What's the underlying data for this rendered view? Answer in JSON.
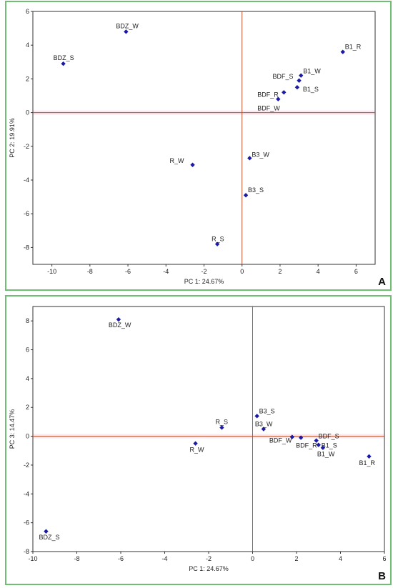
{
  "chart_data": [
    {
      "type": "scatter",
      "panel_letter": "A",
      "xlabel": "PC 1: 24.67%",
      "ylabel": "PC 2: 19.91%",
      "xlim": [
        -11,
        7
      ],
      "ylim": [
        -9,
        6
      ],
      "xticks": [
        -10,
        -8,
        -6,
        -4,
        -2,
        0,
        2,
        4,
        6
      ],
      "yticks": [
        -8,
        -6,
        -4,
        -2,
        0,
        2,
        4,
        6
      ],
      "points": [
        {
          "label": "BDZ_W",
          "x": -6.1,
          "y": 4.8
        },
        {
          "label": "BDZ_S",
          "x": -9.4,
          "y": 2.9
        },
        {
          "label": "B1_R",
          "x": 5.3,
          "y": 3.6
        },
        {
          "label": "B1_W",
          "x": 3.1,
          "y": 2.2
        },
        {
          "label": "BDF_S",
          "x": 3.0,
          "y": 1.9
        },
        {
          "label": "B1_S",
          "x": 2.9,
          "y": 1.5
        },
        {
          "label": "BDF_R",
          "x": 2.2,
          "y": 1.2
        },
        {
          "label": "BDF_W",
          "x": 1.9,
          "y": 0.8
        },
        {
          "label": "B3_W",
          "x": 0.4,
          "y": -2.7
        },
        {
          "label": "R_W",
          "x": -2.6,
          "y": -3.1
        },
        {
          "label": "B3_S",
          "x": 0.2,
          "y": -4.9
        },
        {
          "label": "R_S",
          "x": -1.3,
          "y": -7.8
        }
      ]
    },
    {
      "type": "scatter",
      "panel_letter": "B",
      "xlabel": "PC 1: 24.67%",
      "ylabel": "PC 3: 14.47%",
      "xlim": [
        -10,
        6
      ],
      "ylim": [
        -8,
        9
      ],
      "xticks": [
        -10,
        -8,
        -6,
        -4,
        -2,
        0,
        2,
        4,
        6
      ],
      "yticks": [
        -8,
        -6,
        -4,
        -2,
        0,
        2,
        4,
        6,
        8
      ],
      "points": [
        {
          "label": "BDZ_W",
          "x": -6.1,
          "y": 8.1
        },
        {
          "label": "BDZ_S",
          "x": -9.4,
          "y": -6.6
        },
        {
          "label": "B3_S",
          "x": 0.2,
          "y": 1.4
        },
        {
          "label": "B3_W",
          "x": 0.5,
          "y": 0.5
        },
        {
          "label": "R_S",
          "x": -1.4,
          "y": 0.6
        },
        {
          "label": "R_W",
          "x": -2.6,
          "y": -0.5
        },
        {
          "label": "BDF_W",
          "x": 1.8,
          "y": -0.05
        },
        {
          "label": "BDF_R",
          "x": 2.2,
          "y": -0.1
        },
        {
          "label": "BDF_S",
          "x": 2.9,
          "y": -0.3
        },
        {
          "label": "B1_S",
          "x": 3.0,
          "y": -0.6
        },
        {
          "label": "B1_W",
          "x": 3.2,
          "y": -0.8
        },
        {
          "label": "B1_R",
          "x": 5.3,
          "y": -1.4
        }
      ]
    }
  ]
}
